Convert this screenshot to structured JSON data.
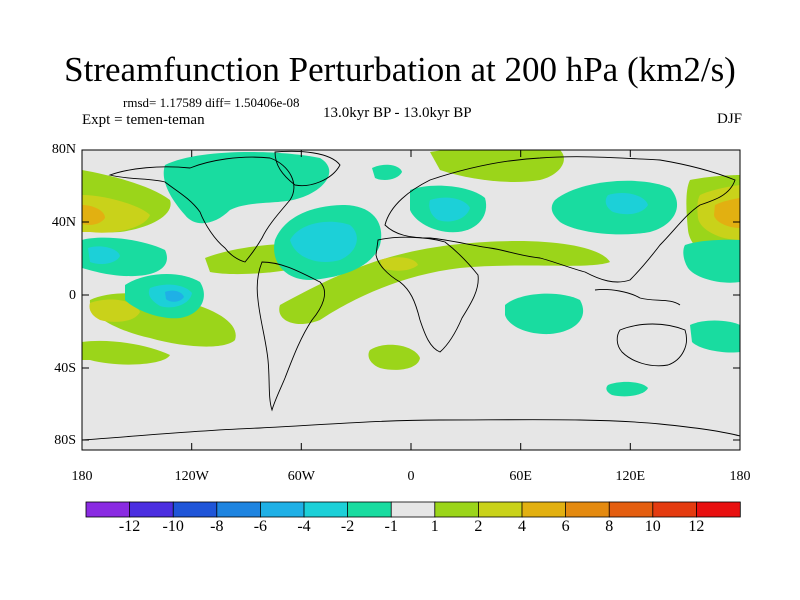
{
  "header": {
    "title": "Streamfunction Perturbation at 200 hPa (km2/s)",
    "stats": "rmsd= 1.17589 diff= 1.50406e-08",
    "experiment": "Expt = temen-teman",
    "subtitle": "13.0kyr BP - 13.0kyr BP",
    "season": "DJF"
  },
  "axes": {
    "lat_ticks": [
      "80N",
      "40N",
      "0",
      "40S",
      "80S"
    ],
    "lon_ticks": [
      "180",
      "120W",
      "60W",
      "0",
      "60E",
      "120E",
      "180"
    ]
  },
  "colorbar": {
    "labels": [
      "-12",
      "-10",
      "-8",
      "-6",
      "-4",
      "-2",
      "-1",
      "1",
      "2",
      "4",
      "6",
      "8",
      "10",
      "12"
    ],
    "colors": [
      "#8a2be2",
      "#4b2ee0",
      "#1f55d8",
      "#1e84e0",
      "#1fb0e6",
      "#1cd0d8",
      "#19dca0",
      "#e6e6e6",
      "#9bd51a",
      "#c9d21a",
      "#e2b011",
      "#e48a10",
      "#e45e10",
      "#e43b10",
      "#e81010"
    ]
  },
  "chart_data": {
    "type": "heatmap",
    "title": "Streamfunction Perturbation at 200 hPa (km2/s)",
    "variable": "streamfunction perturbation",
    "level": "200 hPa",
    "units": "km2/s",
    "season": "DJF",
    "x_range": [
      -180,
      180
    ],
    "y_range": [
      -90,
      90
    ],
    "levels": [
      -12,
      -10,
      -8,
      -6,
      -4,
      -2,
      -1,
      1,
      2,
      4,
      6,
      8,
      10,
      12
    ],
    "features": [
      {
        "lon": -140,
        "lat": 0,
        "value": -6
      },
      {
        "lon": -60,
        "lat": 25,
        "value": -5
      },
      {
        "lon": -160,
        "lat": 20,
        "value": -5
      },
      {
        "lon": 20,
        "lat": 47,
        "value": -5
      },
      {
        "lon": 115,
        "lat": 45,
        "value": -5
      },
      {
        "lon": -70,
        "lat": 72,
        "value": -2
      },
      {
        "lon": 60,
        "lat": 73,
        "value": 1.5
      },
      {
        "lon": 5,
        "lat": 63,
        "value": -1.5
      },
      {
        "lon": 170,
        "lat": 45,
        "value": 5
      },
      {
        "lon": -175,
        "lat": 42,
        "value": 4
      },
      {
        "lon": -165,
        "lat": 35,
        "value": 2
      },
      {
        "lon": 10,
        "lat": 18,
        "value": 2.5
      },
      {
        "lon": -20,
        "lat": 8,
        "value": 1.5
      },
      {
        "lon": -175,
        "lat": -10,
        "value": 2
      },
      {
        "lon": -10,
        "lat": -30,
        "value": 1.5
      },
      {
        "lon": 120,
        "lat": -48,
        "value": -1.5
      },
      {
        "lon": 75,
        "lat": -10,
        "value": -1.5
      },
      {
        "lon": 170,
        "lat": -18,
        "value": -1.5
      }
    ]
  }
}
